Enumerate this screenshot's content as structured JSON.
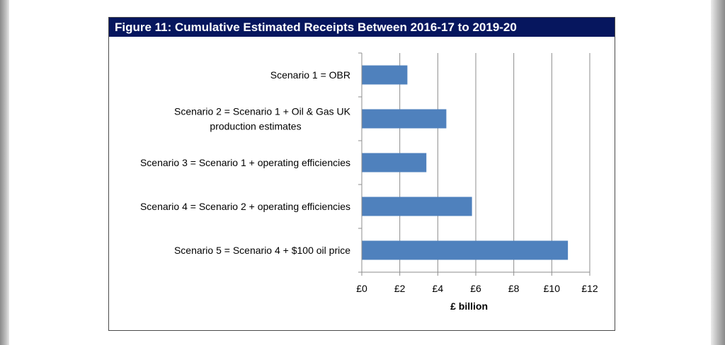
{
  "chart_data": {
    "type": "bar",
    "orientation": "horizontal",
    "title": "Figure 11: Cumulative Estimated Receipts Between 2016-17 to 2019-20",
    "categories": [
      [
        "Scenario 1 = OBR"
      ],
      [
        "Scenario 2 = Scenario 1 + Oil & Gas UK",
        "production estimates"
      ],
      [
        "Scenario 3 = Scenario 1 + operating efficiencies"
      ],
      [
        "Scenario 4 = Scenario 2 + operating efficiencies"
      ],
      [
        "Scenario 5 = Scenario 4 + $100 oil price"
      ]
    ],
    "values": [
      2.4,
      4.45,
      3.4,
      5.8,
      10.85
    ],
    "xlim": [
      0,
      12
    ],
    "xticks": [
      0,
      2,
      4,
      6,
      8,
      10,
      12
    ],
    "xtick_labels": [
      "£0",
      "£2",
      "£4",
      "£6",
      "£8",
      "£10",
      "£12"
    ],
    "xlabel": "£ billion",
    "ylabel": "",
    "grid": "vertical",
    "bar_color": "#4f81bd",
    "title_bg_color": "#06165e"
  }
}
